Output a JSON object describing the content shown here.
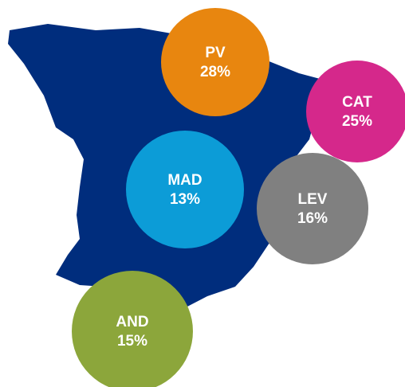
{
  "regions": {
    "names": [
      "PV",
      "CAT",
      "MAD",
      "LEV",
      "AND"
    ],
    "values": [
      28,
      25,
      13,
      16,
      15
    ],
    "value_labels": [
      "28%",
      "25%",
      "13%",
      "16%",
      "15%"
    ],
    "colors": [
      "#e8860f",
      "#d5288b",
      "#0c9cd7",
      "#808080",
      "#8ca63b"
    ]
  }
}
